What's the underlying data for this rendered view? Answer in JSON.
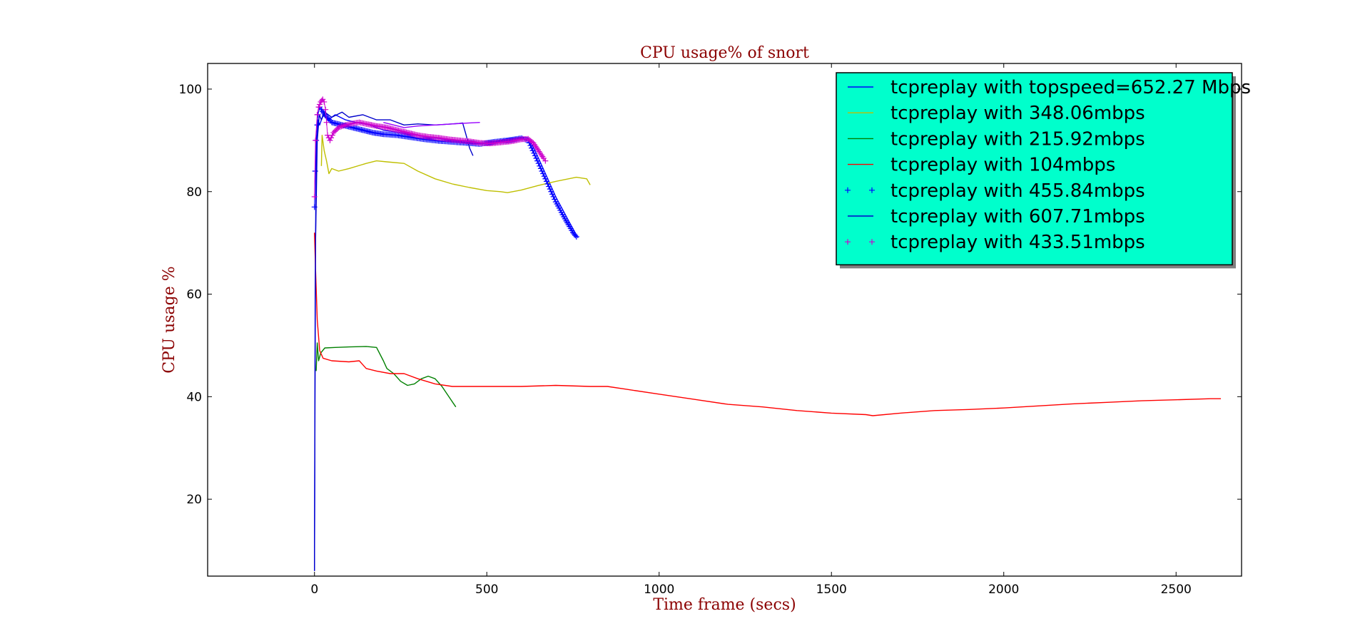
{
  "chart_data": {
    "type": "line",
    "title": "CPU usage% of snort",
    "xlabel": "Time frame (secs)",
    "ylabel": "CPU usage %",
    "xlim": [
      -310,
      2690
    ],
    "ylim": [
      5,
      105
    ],
    "xticks": [
      0,
      500,
      1000,
      1500,
      2000,
      2500
    ],
    "yticks": [
      20,
      40,
      60,
      80,
      100
    ],
    "grid": false,
    "legend_position": "top-right",
    "series": [
      {
        "name": "tcpreplay with topspeed=652.27 Mbps",
        "style": "line",
        "color": "#0000ff",
        "points": [
          [
            0,
            6
          ],
          [
            2,
            60
          ],
          [
            5,
            88
          ],
          [
            10,
            94
          ],
          [
            15,
            93
          ],
          [
            25,
            95
          ],
          [
            40,
            94
          ],
          [
            60,
            95
          ],
          [
            90,
            94
          ],
          [
            120,
            93.5
          ],
          [
            160,
            93
          ],
          [
            200,
            92
          ],
          [
            250,
            91.5
          ],
          [
            300,
            91
          ],
          [
            350,
            90.5
          ],
          [
            400,
            90
          ],
          [
            450,
            89.5
          ],
          [
            500,
            89.5
          ],
          [
            520,
            89.8
          ],
          [
            560,
            90.3
          ],
          [
            600,
            90.6
          ],
          [
            620,
            90.5
          ],
          [
            640,
            88
          ],
          [
            660,
            85
          ],
          [
            680,
            82
          ],
          [
            700,
            79
          ],
          [
            720,
            76.5
          ],
          [
            740,
            74
          ],
          [
            760,
            71.5
          ],
          [
            765,
            71
          ]
        ]
      },
      {
        "name": "tcpreplay with 348.06mbps",
        "style": "line",
        "color": "#bfbf00",
        "points": [
          [
            20,
            85
          ],
          [
            22,
            91
          ],
          [
            28,
            88
          ],
          [
            35,
            86
          ],
          [
            42,
            83.5
          ],
          [
            50,
            84.5
          ],
          [
            70,
            84
          ],
          [
            100,
            84.5
          ],
          [
            150,
            85.5
          ],
          [
            180,
            86
          ],
          [
            210,
            85.8
          ],
          [
            260,
            85.5
          ],
          [
            300,
            84
          ],
          [
            350,
            82.5
          ],
          [
            400,
            81.5
          ],
          [
            450,
            80.8
          ],
          [
            500,
            80.2
          ],
          [
            540,
            80
          ],
          [
            560,
            79.8
          ],
          [
            600,
            80.3
          ],
          [
            650,
            81.2
          ],
          [
            700,
            82
          ],
          [
            760,
            82.8
          ],
          [
            790,
            82.5
          ],
          [
            800,
            81.3
          ]
        ]
      },
      {
        "name": "tcpreplay with 215.92mbps",
        "style": "line",
        "color": "#008000",
        "points": [
          [
            5,
            45
          ],
          [
            8,
            50.5
          ],
          [
            12,
            47
          ],
          [
            18,
            48.5
          ],
          [
            30,
            49.5
          ],
          [
            60,
            49.6
          ],
          [
            100,
            49.7
          ],
          [
            150,
            49.8
          ],
          [
            180,
            49.6
          ],
          [
            200,
            47
          ],
          [
            210,
            45.5
          ],
          [
            230,
            44.5
          ],
          [
            250,
            43
          ],
          [
            270,
            42.2
          ],
          [
            290,
            42.5
          ],
          [
            310,
            43.5
          ],
          [
            330,
            44
          ],
          [
            350,
            43.5
          ],
          [
            370,
            42
          ],
          [
            390,
            40
          ],
          [
            410,
            38
          ]
        ]
      },
      {
        "name": "tcpreplay with 104mbps",
        "style": "line",
        "color": "#ff0000",
        "points": [
          [
            0,
            72
          ],
          [
            3,
            65
          ],
          [
            8,
            55
          ],
          [
            15,
            49
          ],
          [
            25,
            47.5
          ],
          [
            50,
            47
          ],
          [
            100,
            46.8
          ],
          [
            130,
            47
          ],
          [
            150,
            45.5
          ],
          [
            180,
            45
          ],
          [
            220,
            44.5
          ],
          [
            260,
            44.5
          ],
          [
            300,
            43.5
          ],
          [
            350,
            42.5
          ],
          [
            400,
            42
          ],
          [
            500,
            42
          ],
          [
            600,
            42
          ],
          [
            700,
            42.2
          ],
          [
            800,
            42
          ],
          [
            850,
            42
          ],
          [
            900,
            41.5
          ],
          [
            1000,
            40.5
          ],
          [
            1100,
            39.5
          ],
          [
            1200,
            38.5
          ],
          [
            1300,
            38
          ],
          [
            1400,
            37.3
          ],
          [
            1500,
            36.8
          ],
          [
            1600,
            36.5
          ],
          [
            1620,
            36.3
          ],
          [
            1700,
            36.8
          ],
          [
            1800,
            37.3
          ],
          [
            1900,
            37.5
          ],
          [
            2000,
            37.8
          ],
          [
            2100,
            38.2
          ],
          [
            2200,
            38.6
          ],
          [
            2300,
            38.9
          ],
          [
            2400,
            39.2
          ],
          [
            2500,
            39.4
          ],
          [
            2600,
            39.6
          ],
          [
            2630,
            39.6
          ]
        ]
      },
      {
        "name": "tcpreplay with 455.84mbps",
        "style": "plus",
        "color": "#0000ff",
        "points": [
          [
            0,
            77
          ],
          [
            2,
            84
          ],
          [
            5,
            90
          ],
          [
            8,
            93
          ],
          [
            10,
            95
          ],
          [
            15,
            96.5
          ],
          [
            20,
            96
          ],
          [
            30,
            95
          ],
          [
            50,
            93.5
          ],
          [
            80,
            93
          ],
          [
            110,
            92.5
          ],
          [
            140,
            92
          ],
          [
            170,
            91.5
          ],
          [
            200,
            91.2
          ],
          [
            240,
            91
          ],
          [
            280,
            90.6
          ],
          [
            320,
            90.2
          ],
          [
            360,
            89.9
          ],
          [
            400,
            89.7
          ],
          [
            440,
            89.5
          ],
          [
            480,
            89.3
          ],
          [
            520,
            89.7
          ],
          [
            560,
            90
          ],
          [
            600,
            90.4
          ],
          [
            620,
            90
          ],
          [
            630,
            88.5
          ],
          [
            640,
            87
          ],
          [
            650,
            85.5
          ],
          [
            660,
            84
          ],
          [
            670,
            82.5
          ],
          [
            680,
            81
          ],
          [
            690,
            79.5
          ],
          [
            700,
            78
          ],
          [
            710,
            76.8
          ],
          [
            720,
            75.5
          ],
          [
            730,
            74.3
          ],
          [
            740,
            73.2
          ],
          [
            750,
            72
          ],
          [
            760,
            71.2
          ]
        ]
      },
      {
        "name": "tcpreplay with 607.71mbps",
        "style": "line",
        "color": "#0000cc",
        "points": [
          [
            0,
            6
          ],
          [
            3,
            70
          ],
          [
            8,
            90
          ],
          [
            14,
            95
          ],
          [
            20,
            94
          ],
          [
            30,
            95.5
          ],
          [
            50,
            94.5
          ],
          [
            80,
            95.5
          ],
          [
            100,
            94.5
          ],
          [
            140,
            95
          ],
          [
            180,
            94
          ],
          [
            220,
            94
          ],
          [
            260,
            93
          ],
          [
            300,
            93.2
          ],
          [
            350,
            93
          ],
          [
            400,
            93.2
          ],
          [
            420,
            93.3
          ],
          [
            430,
            93.4
          ],
          [
            440,
            91
          ],
          [
            450,
            88.5
          ],
          [
            460,
            87
          ]
        ]
      },
      {
        "name": "tcpreplay with 433.51mbps",
        "style": "plus",
        "color": "#cc00cc",
        "points": [
          [
            0,
            79
          ],
          [
            3,
            90
          ],
          [
            8,
            95
          ],
          [
            12,
            96.5
          ],
          [
            18,
            97.5
          ],
          [
            24,
            98
          ],
          [
            28,
            97.5
          ],
          [
            32,
            96
          ],
          [
            38,
            91
          ],
          [
            45,
            90
          ],
          [
            55,
            91.5
          ],
          [
            70,
            92.5
          ],
          [
            90,
            93
          ],
          [
            110,
            93.3
          ],
          [
            130,
            93.5
          ],
          [
            150,
            93.2
          ],
          [
            180,
            92.8
          ],
          [
            210,
            92.5
          ],
          [
            240,
            92
          ],
          [
            270,
            91.5
          ],
          [
            300,
            91
          ],
          [
            330,
            90.7
          ],
          [
            360,
            90.5
          ],
          [
            390,
            90.2
          ],
          [
            420,
            90
          ],
          [
            450,
            89.8
          ],
          [
            480,
            89.5
          ],
          [
            510,
            89.4
          ],
          [
            540,
            89.6
          ],
          [
            570,
            89.8
          ],
          [
            600,
            90.2
          ],
          [
            620,
            90.3
          ],
          [
            635,
            89.5
          ],
          [
            645,
            88.5
          ],
          [
            655,
            87.5
          ],
          [
            665,
            86.5
          ],
          [
            670,
            86
          ]
        ]
      },
      {
        "name": "",
        "style": "line",
        "color": "#9900ff",
        "points": [
          [
            200,
            93.5
          ],
          [
            260,
            92.5
          ],
          [
            300,
            92.8
          ],
          [
            350,
            93
          ],
          [
            400,
            93.2
          ],
          [
            450,
            93.4
          ],
          [
            480,
            93.5
          ]
        ]
      }
    ]
  }
}
